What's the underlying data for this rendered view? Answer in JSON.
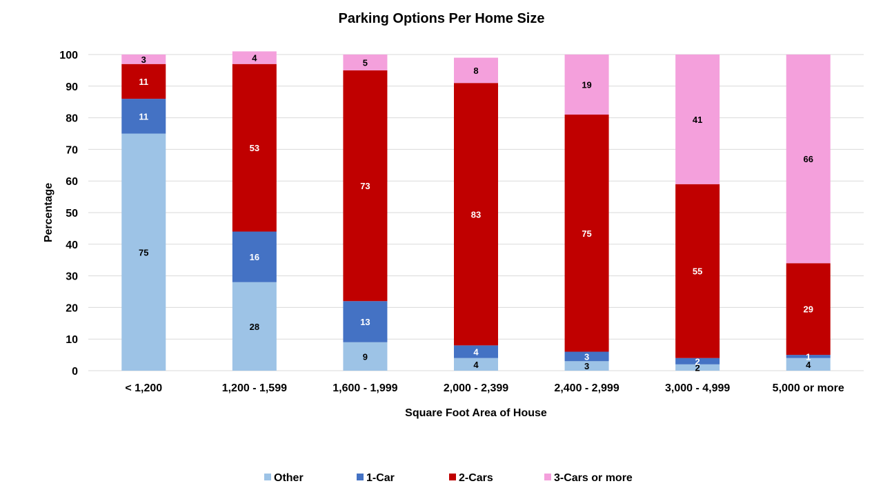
{
  "chart_data": {
    "type": "bar",
    "stacked": true,
    "title": "Parking Options Per Home Size",
    "xlabel": "Square Foot Area of House",
    "ylabel": "Percentage",
    "ylim": [
      0,
      100
    ],
    "yticks": [
      0,
      10,
      20,
      30,
      40,
      50,
      60,
      70,
      80,
      90,
      100
    ],
    "grid": true,
    "legend_position": "bottom",
    "categories": [
      "< 1,200",
      "1,200 - 1,599",
      "1,600 - 1,999",
      "2,000 - 2,399",
      "2,400 - 2,999",
      "3,000 - 4,999",
      "5,000 or more"
    ],
    "series": [
      {
        "name": "Other",
        "color": "#9dc3e6",
        "label_color": "#000000",
        "values": [
          75,
          28,
          9,
          4,
          3,
          2,
          4
        ]
      },
      {
        "name": "1-Car",
        "color": "#4472c4",
        "label_color": "#ffffff",
        "values": [
          11,
          16,
          13,
          4,
          3,
          2,
          1
        ]
      },
      {
        "name": "2-Cars",
        "color": "#c00000",
        "label_color": "#ffffff",
        "values": [
          11,
          53,
          73,
          83,
          75,
          55,
          29
        ]
      },
      {
        "name": "3-Cars or more",
        "color": "#f4a0dc",
        "label_color": "#000000",
        "values": [
          3,
          4,
          5,
          8,
          19,
          41,
          66
        ]
      }
    ]
  }
}
